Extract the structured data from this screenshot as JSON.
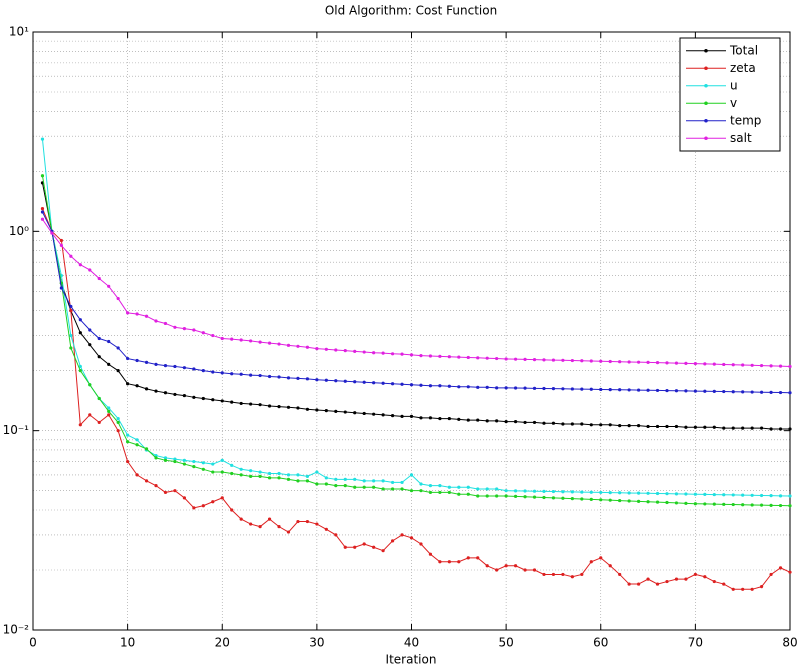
{
  "chart_data": {
    "type": "line",
    "title": "Old Algorithm: Cost Function",
    "x_label": "Iteration",
    "x": [
      1,
      2,
      3,
      4,
      5,
      6,
      7,
      8,
      9,
      10,
      11,
      12,
      13,
      14,
      15,
      16,
      17,
      18,
      19,
      20,
      21,
      22,
      23,
      24,
      25,
      26,
      27,
      28,
      29,
      30,
      31,
      32,
      33,
      34,
      35,
      36,
      37,
      38,
      39,
      40,
      41,
      42,
      43,
      44,
      45,
      46,
      47,
      48,
      49,
      50,
      51,
      52,
      53,
      54,
      55,
      56,
      57,
      58,
      59,
      60,
      61,
      62,
      63,
      64,
      65,
      66,
      67,
      68,
      69,
      70,
      71,
      72,
      73,
      74,
      75,
      76,
      77,
      78,
      79,
      80
    ],
    "series": [
      {
        "name": "Total",
        "color": "#000000",
        "values": [
          1.75,
          1.0,
          0.55,
          0.4,
          0.31,
          0.27,
          0.235,
          0.215,
          0.2,
          0.172,
          0.168,
          0.162,
          0.158,
          0.155,
          0.152,
          0.15,
          0.147,
          0.145,
          0.143,
          0.141,
          0.139,
          0.137,
          0.136,
          0.135,
          0.133,
          0.132,
          0.131,
          0.13,
          0.128,
          0.127,
          0.126,
          0.125,
          0.124,
          0.123,
          0.122,
          0.121,
          0.12,
          0.119,
          0.118,
          0.118,
          0.116,
          0.116,
          0.115,
          0.115,
          0.114,
          0.113,
          0.113,
          0.112,
          0.112,
          0.111,
          0.111,
          0.11,
          0.11,
          0.109,
          0.109,
          0.108,
          0.108,
          0.108,
          0.107,
          0.107,
          0.107,
          0.106,
          0.106,
          0.106,
          0.105,
          0.105,
          0.105,
          0.105,
          0.104,
          0.104,
          0.104,
          0.104,
          0.103,
          0.103,
          0.103,
          0.103,
          0.103,
          0.102,
          0.102,
          0.102
        ]
      },
      {
        "name": "zeta",
        "color": "#dd2020",
        "values": [
          1.3,
          1.0,
          0.9,
          0.4,
          0.107,
          0.12,
          0.11,
          0.12,
          0.1,
          0.07,
          0.06,
          0.056,
          0.053,
          0.049,
          0.05,
          0.046,
          0.041,
          0.042,
          0.044,
          0.046,
          0.04,
          0.036,
          0.034,
          0.033,
          0.036,
          0.033,
          0.031,
          0.035,
          0.035,
          0.034,
          0.032,
          0.03,
          0.026,
          0.026,
          0.027,
          0.026,
          0.025,
          0.028,
          0.03,
          0.029,
          0.027,
          0.024,
          0.022,
          0.022,
          0.022,
          0.023,
          0.023,
          0.021,
          0.02,
          0.021,
          0.021,
          0.02,
          0.02,
          0.019,
          0.019,
          0.019,
          0.0185,
          0.019,
          0.022,
          0.023,
          0.021,
          0.019,
          0.017,
          0.017,
          0.018,
          0.017,
          0.0175,
          0.018,
          0.018,
          0.019,
          0.0185,
          0.0175,
          0.017,
          0.016,
          0.016,
          0.016,
          0.0165,
          0.019,
          0.0205,
          0.0195
        ]
      },
      {
        "name": "u",
        "color": "#20e0e0",
        "values": [
          2.9,
          1.0,
          0.6,
          0.3,
          0.21,
          0.17,
          0.145,
          0.13,
          0.115,
          0.095,
          0.09,
          0.08,
          0.075,
          0.073,
          0.072,
          0.071,
          0.07,
          0.069,
          0.068,
          0.071,
          0.067,
          0.064,
          0.063,
          0.062,
          0.061,
          0.061,
          0.06,
          0.06,
          0.059,
          0.062,
          0.058,
          0.057,
          0.057,
          0.057,
          0.056,
          0.056,
          0.056,
          0.055,
          0.055,
          0.06,
          0.054,
          0.053,
          0.053,
          0.052,
          0.052,
          0.052,
          0.051,
          0.051,
          0.051,
          0.05,
          0.0499,
          0.0498,
          0.0497,
          0.0496,
          0.0495,
          0.0494,
          0.0493,
          0.0492,
          0.0491,
          0.049,
          0.0489,
          0.0488,
          0.0487,
          0.0486,
          0.0485,
          0.0484,
          0.0483,
          0.0482,
          0.0481,
          0.048,
          0.0479,
          0.0478,
          0.0477,
          0.0476,
          0.0475,
          0.0474,
          0.0473,
          0.0472,
          0.0471,
          0.047
        ]
      },
      {
        "name": "v",
        "color": "#20d020",
        "values": [
          1.9,
          1.0,
          0.55,
          0.26,
          0.2,
          0.17,
          0.145,
          0.125,
          0.11,
          0.088,
          0.085,
          0.081,
          0.073,
          0.071,
          0.07,
          0.068,
          0.066,
          0.064,
          0.062,
          0.062,
          0.061,
          0.06,
          0.059,
          0.059,
          0.058,
          0.058,
          0.057,
          0.056,
          0.056,
          0.054,
          0.054,
          0.053,
          0.053,
          0.052,
          0.052,
          0.052,
          0.051,
          0.051,
          0.051,
          0.05,
          0.05,
          0.049,
          0.049,
          0.049,
          0.048,
          0.048,
          0.047,
          0.047,
          0.047,
          0.047,
          0.0468,
          0.0466,
          0.0464,
          0.0462,
          0.046,
          0.0458,
          0.0456,
          0.0454,
          0.0452,
          0.045,
          0.0448,
          0.0446,
          0.0444,
          0.0442,
          0.044,
          0.0438,
          0.0436,
          0.0434,
          0.0432,
          0.043,
          0.0429,
          0.0428,
          0.0427,
          0.0426,
          0.0425,
          0.0424,
          0.0423,
          0.0422,
          0.0421,
          0.042
        ]
      },
      {
        "name": "temp",
        "color": "#2020c8",
        "values": [
          1.25,
          1.0,
          0.52,
          0.42,
          0.36,
          0.32,
          0.29,
          0.28,
          0.26,
          0.23,
          0.225,
          0.22,
          0.215,
          0.212,
          0.21,
          0.207,
          0.204,
          0.2,
          0.197,
          0.195,
          0.193,
          0.192,
          0.19,
          0.189,
          0.187,
          0.186,
          0.184,
          0.183,
          0.182,
          0.18,
          0.179,
          0.178,
          0.177,
          0.176,
          0.175,
          0.174,
          0.173,
          0.172,
          0.171,
          0.17,
          0.169,
          0.168,
          0.168,
          0.167,
          0.166,
          0.166,
          0.165,
          0.165,
          0.164,
          0.164,
          0.1637,
          0.1634,
          0.1631,
          0.1628,
          0.1625,
          0.1622,
          0.1619,
          0.1616,
          0.1613,
          0.161,
          0.1607,
          0.1604,
          0.1601,
          0.1598,
          0.1595,
          0.1592,
          0.1589,
          0.1586,
          0.1583,
          0.158,
          0.1577,
          0.1574,
          0.1571,
          0.1568,
          0.1565,
          0.1562,
          0.1559,
          0.1556,
          0.1553,
          0.155
        ]
      },
      {
        "name": "salt",
        "color": "#e020e0",
        "values": [
          1.15,
          0.98,
          0.85,
          0.75,
          0.68,
          0.64,
          0.58,
          0.53,
          0.46,
          0.39,
          0.385,
          0.375,
          0.355,
          0.345,
          0.33,
          0.325,
          0.32,
          0.31,
          0.3,
          0.29,
          0.288,
          0.285,
          0.282,
          0.278,
          0.275,
          0.272,
          0.268,
          0.265,
          0.262,
          0.258,
          0.256,
          0.254,
          0.252,
          0.25,
          0.248,
          0.246,
          0.245,
          0.243,
          0.242,
          0.24,
          0.238,
          0.237,
          0.236,
          0.235,
          0.234,
          0.233,
          0.232,
          0.231,
          0.23,
          0.229,
          0.2284,
          0.2278,
          0.2272,
          0.2266,
          0.226,
          0.2254,
          0.2248,
          0.2242,
          0.2236,
          0.223,
          0.2224,
          0.2218,
          0.2212,
          0.2206,
          0.22,
          0.2194,
          0.2188,
          0.2182,
          0.2176,
          0.217,
          0.2163,
          0.2156,
          0.2149,
          0.2142,
          0.2135,
          0.2128,
          0.2121,
          0.2114,
          0.2107,
          0.21
        ]
      }
    ],
    "xlim": [
      0,
      80
    ],
    "xticks": [
      0,
      10,
      20,
      30,
      40,
      50,
      60,
      70,
      80
    ],
    "ylim": [
      0.01,
      10
    ],
    "yscale": "log",
    "yticks": [
      {
        "value": 0.01,
        "label": "10⁻²"
      },
      {
        "value": 0.1,
        "label": "10⁻¹"
      },
      {
        "value": 1,
        "label": "10⁰"
      },
      {
        "value": 10,
        "label": "10¹"
      }
    ],
    "grid": true,
    "legend": "northeast"
  }
}
